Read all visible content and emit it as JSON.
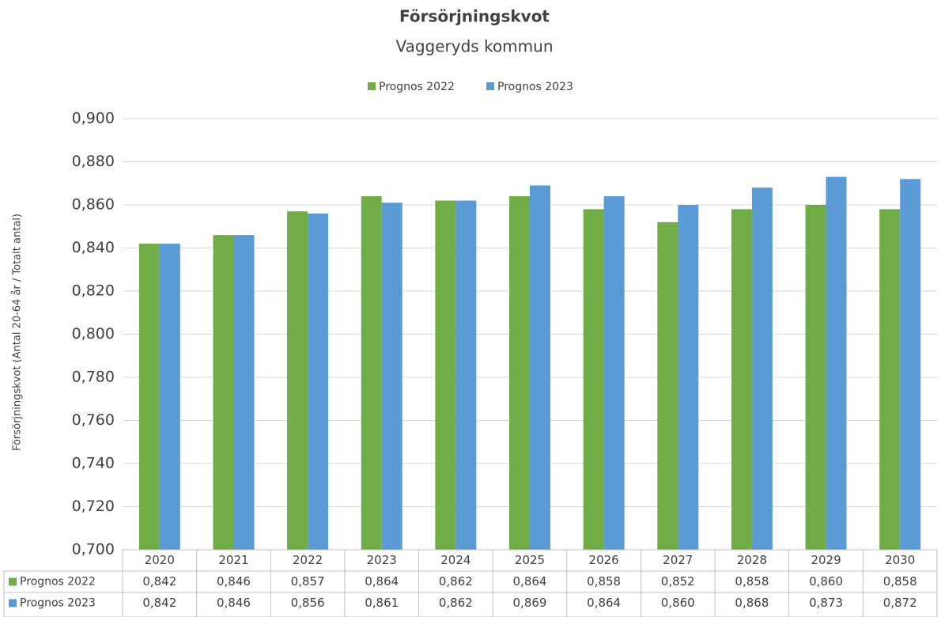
{
  "chart_data": {
    "type": "bar",
    "title": "Försörjningskvot",
    "subtitle": "Vaggeryds kommun",
    "y_label": "Försörjningskvot  (Antal 20-64 år / Totalt antal)",
    "categories": [
      "2020",
      "2021",
      "2022",
      "2023",
      "2024",
      "2025",
      "2026",
      "2027",
      "2028",
      "2029",
      "2030"
    ],
    "series": [
      {
        "name": "Prognos 2022",
        "color": "#70ad47",
        "values": [
          0.842,
          0.846,
          0.857,
          0.864,
          0.862,
          0.864,
          0.858,
          0.852,
          0.858,
          0.86,
          0.858
        ],
        "value_labels": [
          "0,842",
          "0,846",
          "0,857",
          "0,864",
          "0,862",
          "0,864",
          "0,858",
          "0,852",
          "0,858",
          "0,860",
          "0,858"
        ]
      },
      {
        "name": "Prognos 2023",
        "color": "#5b9bd5",
        "values": [
          0.842,
          0.846,
          0.856,
          0.861,
          0.862,
          0.869,
          0.864,
          0.86,
          0.868,
          0.873,
          0.872
        ],
        "value_labels": [
          "0,842",
          "0,846",
          "0,856",
          "0,861",
          "0,862",
          "0,869",
          "0,864",
          "0,860",
          "0,868",
          "0,873",
          "0,872"
        ]
      }
    ],
    "ylim": [
      0.7,
      0.9
    ],
    "yticks": [
      {
        "value": 0.7,
        "label": "0,700"
      },
      {
        "value": 0.72,
        "label": "0,720"
      },
      {
        "value": 0.74,
        "label": "0,740"
      },
      {
        "value": 0.76,
        "label": "0,760"
      },
      {
        "value": 0.78,
        "label": "0,780"
      },
      {
        "value": 0.8,
        "label": "0,800"
      },
      {
        "value": 0.82,
        "label": "0,820"
      },
      {
        "value": 0.84,
        "label": "0,840"
      },
      {
        "value": 0.86,
        "label": "0,860"
      },
      {
        "value": 0.88,
        "label": "0,880"
      },
      {
        "value": 0.9,
        "label": "0,900"
      }
    ],
    "grid": true,
    "legend": "top"
  }
}
